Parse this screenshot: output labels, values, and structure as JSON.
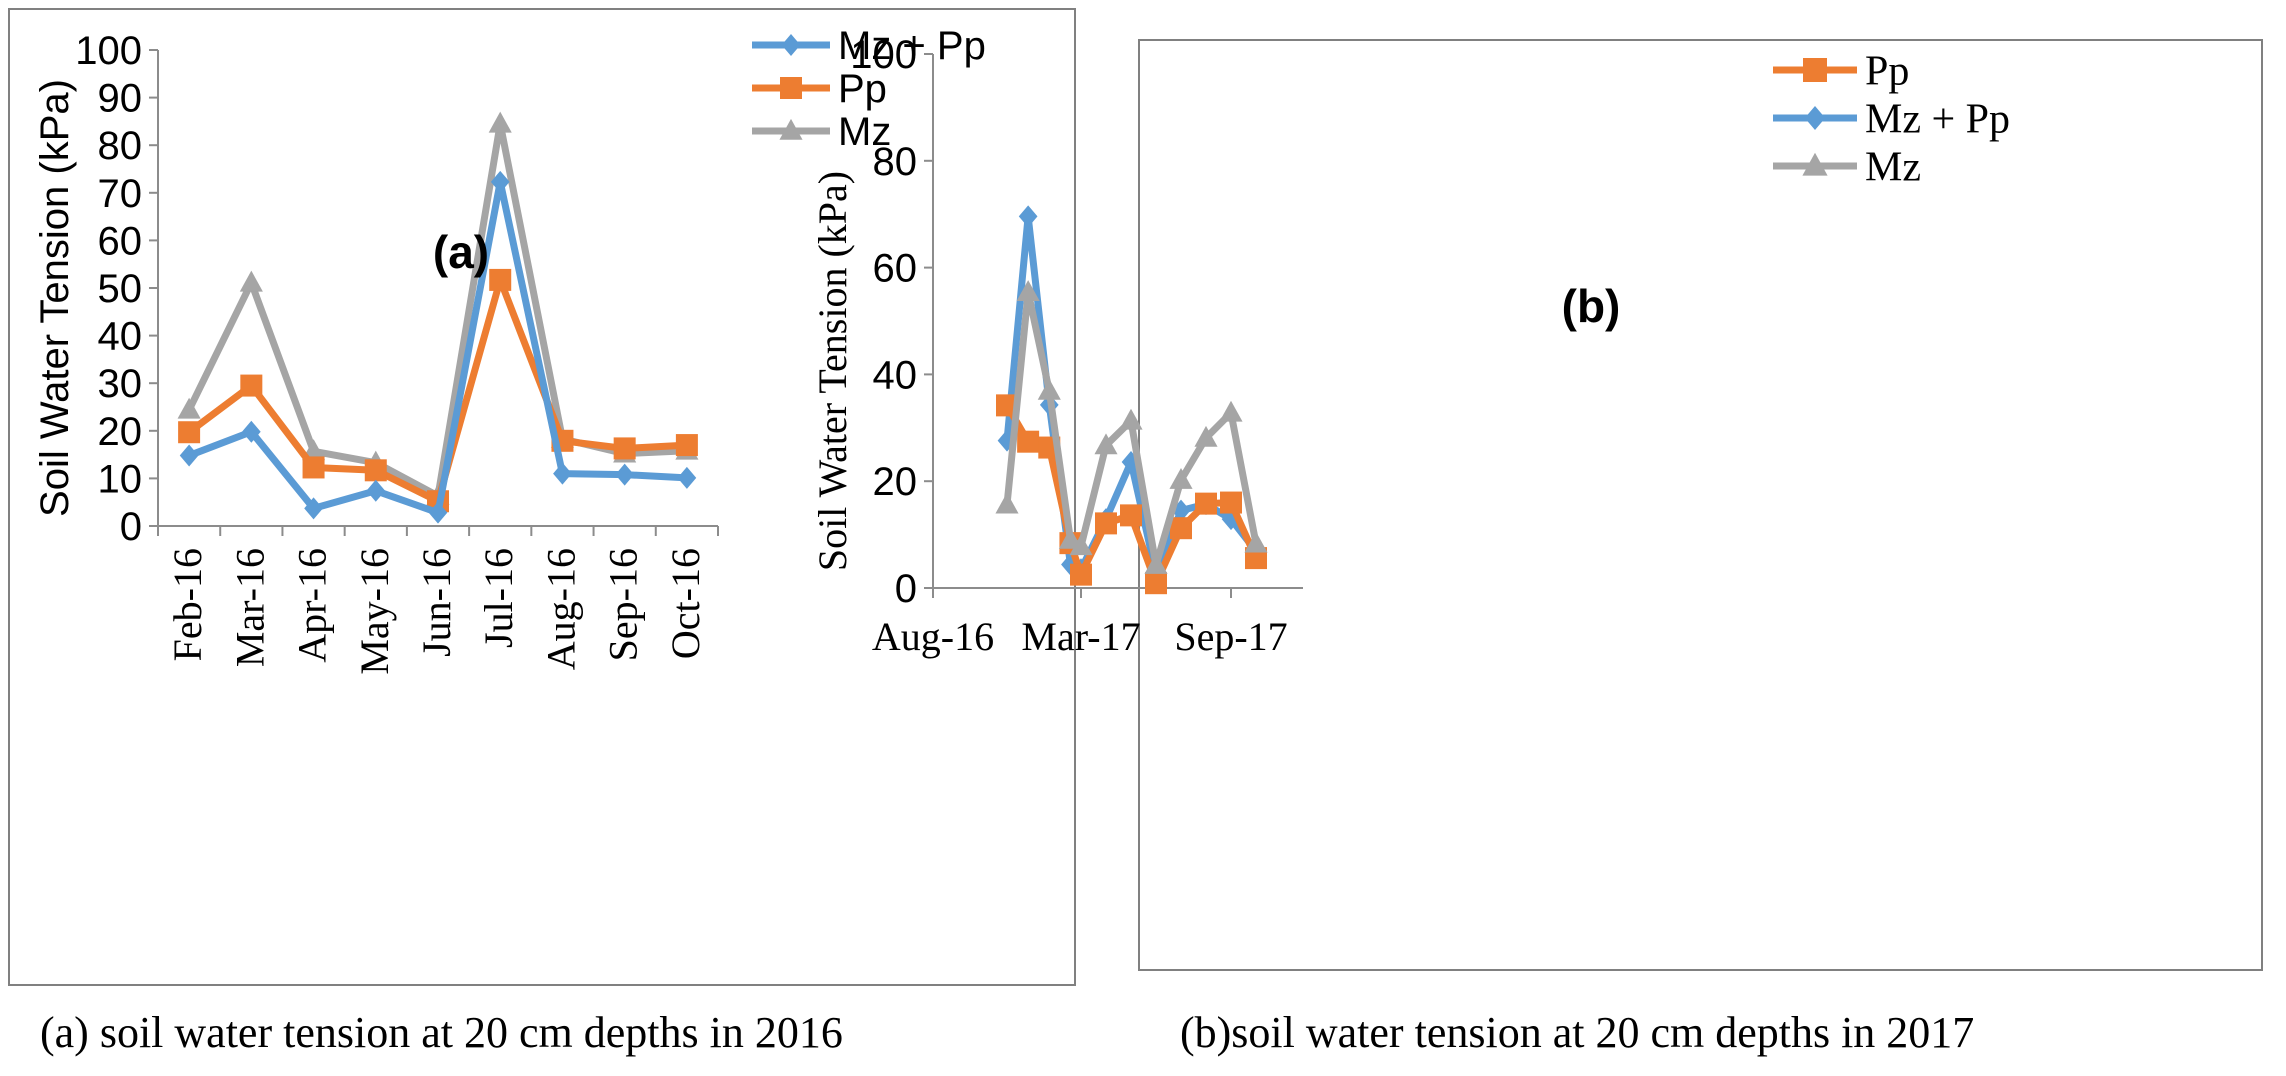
{
  "chart_data": [
    {
      "panel": "a",
      "type": "line",
      "annotation": "(a)",
      "caption": "(a) soil water tension at 20 cm depths in 2016",
      "ylabel": "Soil Water Tension (kPa)",
      "ylim": [
        0,
        100
      ],
      "yticks": [
        0,
        10,
        20,
        30,
        40,
        50,
        60,
        70,
        80,
        90,
        100
      ],
      "categories": [
        "Feb-16",
        "Mar-16",
        "Apr-16",
        "May-16",
        "Jun-16",
        "Jul-16",
        "Aug-16",
        "Sep-16",
        "Oct-16"
      ],
      "legend_position": "top-right",
      "series": [
        {
          "name": "Mz + Pp",
          "color": "#5B9BD5",
          "marker": "diamond",
          "values": [
            14.8,
            19.8,
            3.7,
            7.4,
            2.8,
            72.3,
            11.0,
            10.8,
            10.1
          ]
        },
        {
          "name": "Pp",
          "color": "#ED7D31",
          "marker": "square",
          "values": [
            19.7,
            29.5,
            12.3,
            11.7,
            5.2,
            51.7,
            17.9,
            16.3,
            17.0
          ]
        },
        {
          "name": "Mz",
          "color": "#A5A5A5",
          "marker": "triangle",
          "values": [
            24.4,
            51.1,
            15.7,
            13.3,
            6.3,
            84.5,
            18.3,
            15.2,
            15.8
          ]
        }
      ]
    },
    {
      "panel": "b",
      "type": "line",
      "annotation": "(b)",
      "caption": "(b)soil water tension at 20 cm depths in 2017",
      "ylabel": "Soil Water Tension (kPa)",
      "ylim": [
        0,
        100
      ],
      "yticks": [
        0,
        20,
        40,
        60,
        80,
        100
      ],
      "xticks": [
        "Aug-16",
        "Mar-17",
        "Sep-17"
      ],
      "x_months": [
        0,
        7,
        13
      ],
      "x_month_range": [
        0,
        13
      ],
      "legend_position": "top-right",
      "series": [
        {
          "name": "Pp",
          "color": "#ED7D31",
          "marker": "square",
          "x": [
            3.5,
            4.5,
            5.5,
            6.5,
            7.0,
            8.0,
            9.0,
            10.0,
            11.0,
            12.0,
            13.0,
            14.0
          ],
          "values": [
            34.2,
            27.4,
            26.3,
            8.4,
            2.5,
            12.1,
            13.6,
            0.9,
            11.2,
            15.8,
            16.0,
            5.6
          ]
        },
        {
          "name": "Mz + Pp",
          "color": "#5B9BD5",
          "marker": "diamond",
          "x": [
            3.5,
            4.5,
            5.5,
            6.5,
            7.0,
            8.0,
            9.0,
            10.0,
            11.0,
            12.0,
            13.0,
            14.0
          ],
          "values": [
            27.6,
            69.6,
            34.3,
            4.4,
            3.5,
            12.9,
            23.6,
            2.7,
            14.5,
            15.7,
            12.9,
            6.9
          ]
        },
        {
          "name": "Mz",
          "color": "#A5A5A5",
          "marker": "triangle",
          "x": [
            3.5,
            4.5,
            5.5,
            6.5,
            7.0,
            8.0,
            9.0,
            10.0,
            11.0,
            12.0,
            13.0,
            14.0
          ],
          "values": [
            15.6,
            55.4,
            36.9,
            9.0,
            7.8,
            26.7,
            31.3,
            4.3,
            20.2,
            28.1,
            32.8,
            8.3
          ]
        }
      ]
    }
  ]
}
